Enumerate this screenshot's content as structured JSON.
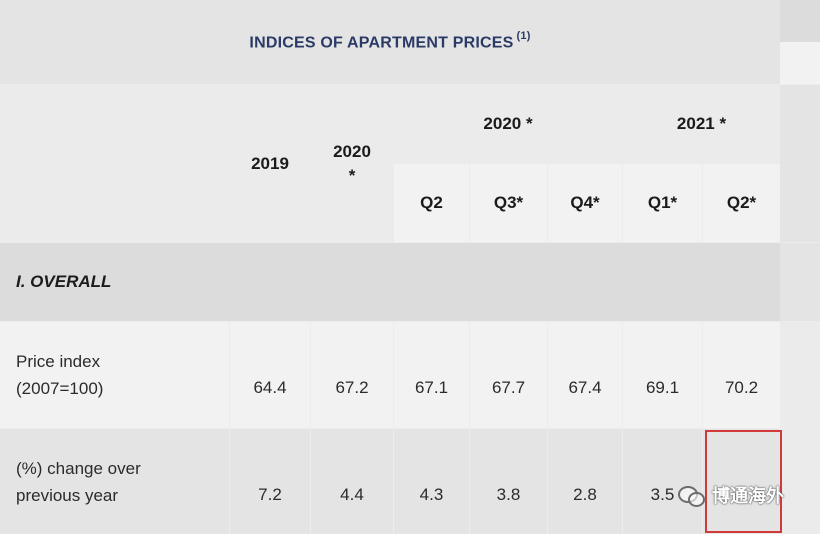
{
  "title": "INDICES OF APARTMENT PRICES",
  "title_note": "(1)",
  "headers": {
    "y2019": "2019",
    "y2020": "2020",
    "y2020_star": "*",
    "g2020": "2020 *",
    "g2021": "2021 *",
    "quarters": [
      "Q2",
      "Q3*",
      "Q4*",
      "Q1*",
      "Q2*"
    ]
  },
  "section": "I. OVERALL",
  "rows": [
    {
      "label_line1": "Price index",
      "label_line2": "(2007=100)",
      "values": [
        "64.4",
        "67.2",
        "67.1",
        "67.7",
        "67.4",
        "69.1",
        "70.2"
      ]
    },
    {
      "label_line1": "(%) change over",
      "label_line2": "previous year",
      "values": [
        "7.2",
        "4.4",
        "4.3",
        "3.8",
        "2.8",
        "3.5"
      ]
    }
  ],
  "watermark": {
    "text": "博通海外",
    "icon": "wechat-icon"
  },
  "colors": {
    "title": "#2a3a66",
    "highlight_box": "#d23a3a"
  }
}
